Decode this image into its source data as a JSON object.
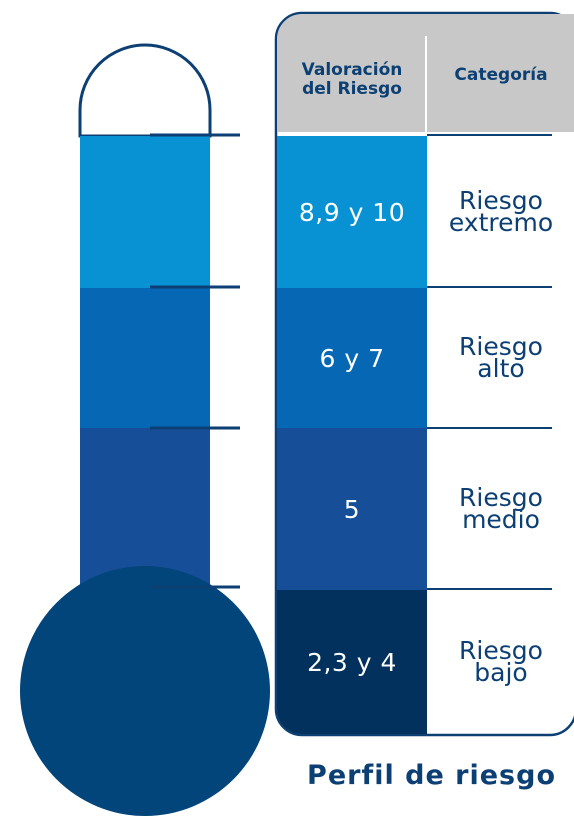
{
  "title": "Perfil de riesgo",
  "table": {
    "headers": {
      "valoracion": "Valoración\ndel Riesgo",
      "categoria": "Categoría"
    },
    "rows": [
      {
        "valoracion": "8,9 y 10",
        "categoria": "Riesgo\nextremo",
        "color": "#0892d4"
      },
      {
        "valoracion": "6 y 7",
        "categoria": "Riesgo\nalto",
        "color": "#0668b5"
      },
      {
        "valoracion": "5",
        "categoria": "Riesgo\nmedio",
        "color": "#164f98"
      },
      {
        "valoracion": "2,3 y 4",
        "categoria": "Riesgo\nbajo",
        "color": "#01315c"
      }
    ]
  },
  "colors": {
    "header_bg": "#c8c8c8",
    "text_dark": "#0c3f73",
    "outline": "#0c3f73",
    "bulb": "#01457a"
  }
}
